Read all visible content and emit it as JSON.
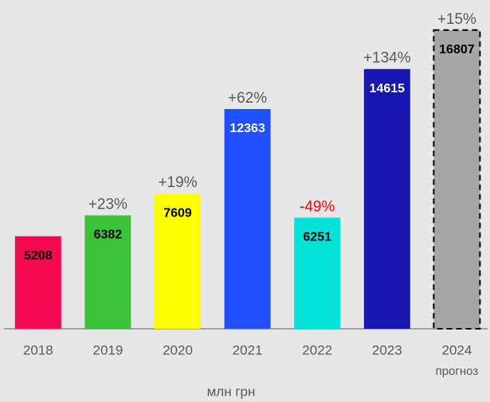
{
  "chart_data": {
    "type": "bar",
    "categories": [
      "2018",
      "2019",
      "2020",
      "2021",
      "2022",
      "2023",
      "2024"
    ],
    "category_note": "прогноз",
    "values": [
      5208,
      6382,
      7609,
      12363,
      6251,
      14615,
      16807
    ],
    "colors": [
      "#f2094f",
      "#3cc23a",
      "#ffff00",
      "#1f50ff",
      "#00e2da",
      "#1616b0",
      "#a6a6a6"
    ],
    "label_colors": [
      "#000000",
      "#000000",
      "#000000",
      "#ffffff",
      "#000000",
      "#ffffff",
      "#000000"
    ],
    "dashed": [
      false,
      false,
      false,
      false,
      false,
      false,
      true
    ],
    "annotations": [
      null,
      "+23%",
      "+19%",
      "+62%",
      "-49%",
      "+134%",
      "+15%"
    ],
    "annotation_colors": [
      "#595959",
      "#595959",
      "#595959",
      "#595959",
      "#ff0000",
      "#595959",
      "#595959"
    ],
    "xlabel": "млн грн",
    "ylim": [
      0,
      18500
    ]
  }
}
